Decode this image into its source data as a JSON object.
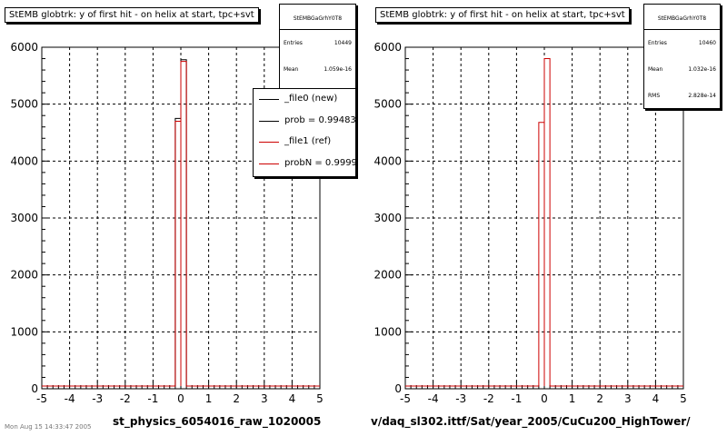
{
  "footer_text": "Mon Aug 15 14:33:47 2005",
  "chart_data": [
    {
      "type": "histogram",
      "title": "StEMB globtrk: y of first hit - on helix at start, tpc+svt",
      "xlabel": "st_physics_6054016_raw_1020005",
      "ylabel": "",
      "xlim": [
        -5,
        5
      ],
      "ylim": [
        0,
        6000
      ],
      "x_ticks": [
        "-5",
        "-4",
        "-3",
        "-2",
        "-1",
        "0",
        "1",
        "2",
        "3",
        "4",
        "5"
      ],
      "y_ticks": [
        "0",
        "1000",
        "2000",
        "3000",
        "4000",
        "5000",
        "6000"
      ],
      "grid": true,
      "stats": {
        "name": "StEMBGaGrhY0T8",
        "entries_label": "Entries",
        "entries": "10449",
        "mean_label": "Mean",
        "mean": "1.059e-16"
      },
      "legend": {
        "placement": "top-right",
        "entries": [
          {
            "label": "_file0 (new)",
            "color": "#000000"
          },
          {
            "label": "prob = 0.994830",
            "color": "#000000"
          },
          {
            "label": "_file1 (ref)",
            "color": "#cc0000"
          },
          {
            "label": "probN = 0.99994",
            "color": "#cc0000"
          }
        ]
      },
      "series": [
        {
          "color": "#000000",
          "bins": [
            {
              "x0": -0.2,
              "x1": 0.0,
              "y": 4750
            },
            {
              "x0": 0.0,
              "x1": 0.2,
              "y": 5780
            }
          ]
        },
        {
          "color": "#cc0000",
          "bins": [
            {
              "x0": -0.2,
              "x1": 0.0,
              "y": 4700
            },
            {
              "x0": 0.0,
              "x1": 0.2,
              "y": 5750
            }
          ]
        }
      ]
    },
    {
      "type": "histogram",
      "title": "StEMB globtrk: y of first hit - on helix at start, tpc+svt",
      "xlabel": "v/daq_sl302.ittf/Sat/year_2005/CuCu200_HighTower/",
      "ylabel": "",
      "xlim": [
        -5,
        5
      ],
      "ylim": [
        0,
        6000
      ],
      "x_ticks": [
        "-5",
        "-4",
        "-3",
        "-2",
        "-1",
        "0",
        "1",
        "2",
        "3",
        "4",
        "5"
      ],
      "y_ticks": [
        "0",
        "1000",
        "2000",
        "3000",
        "4000",
        "5000",
        "6000"
      ],
      "grid": true,
      "stats": {
        "name": "StEMBGaGrhY0T8",
        "entries_label": "Entries",
        "entries": "10460",
        "mean_label": "Mean",
        "mean": "1.032e-16",
        "rms_label": "RMS",
        "rms": "2.828e-14"
      },
      "series": [
        {
          "color": "#cc0000",
          "bins": [
            {
              "x0": -0.2,
              "x1": 0.0,
              "y": 4680
            },
            {
              "x0": 0.0,
              "x1": 0.2,
              "y": 5800
            }
          ]
        }
      ]
    }
  ]
}
